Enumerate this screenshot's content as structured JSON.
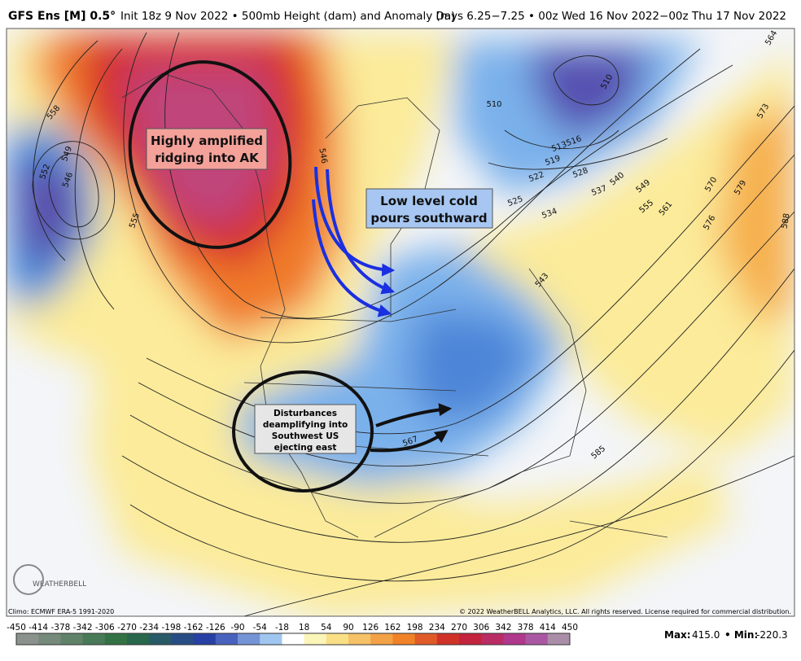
{
  "header": {
    "title": "GFS Ens [M] 0.5°",
    "subtitle": "Init 18z 9 Nov 2022 • 500mb Height (dam) and Anomaly (m)",
    "valid": "Days 6.25−7.25 • 00z Wed 16 Nov 2022−00z Thu 17 Nov 2022"
  },
  "annotations": [
    {
      "lines": [
        "Highly amplified",
        "ridging into AK"
      ]
    },
    {
      "lines": [
        "Low level cold",
        "pours southward"
      ]
    },
    {
      "lines": [
        "Disturbances",
        "deamplifying into",
        "Southwest US",
        "ejecting east"
      ]
    }
  ],
  "contour_labels": [
    "558",
    "549",
    "552",
    "546",
    "555",
    "546",
    "510",
    "510",
    "513",
    "516",
    "519",
    "522",
    "525",
    "528",
    "537",
    "540",
    "549",
    "555",
    "561",
    "570",
    "579",
    "573",
    "564",
    "576",
    "588",
    "534",
    "543",
    "567",
    "585"
  ],
  "footer": {
    "climo": "Climo: ECMWF ERA-5 1991-2020",
    "copyright": "© 2022 WeatherBELL Analytics, LLC. All rights reserved. License required for commercial distribution.",
    "logo": "WEATHERBELL"
  },
  "colorbar": {
    "ticks": [
      -450,
      -414,
      -378,
      -342,
      -306,
      -270,
      -234,
      -198,
      -162,
      -126,
      -90,
      -54,
      -18,
      18,
      54,
      90,
      126,
      162,
      198,
      234,
      270,
      306,
      342,
      378,
      414,
      450
    ]
  },
  "stats": {
    "max_label": "Max:",
    "max": "415.0",
    "min_label": "• Min:",
    "min": "-220.3"
  }
}
